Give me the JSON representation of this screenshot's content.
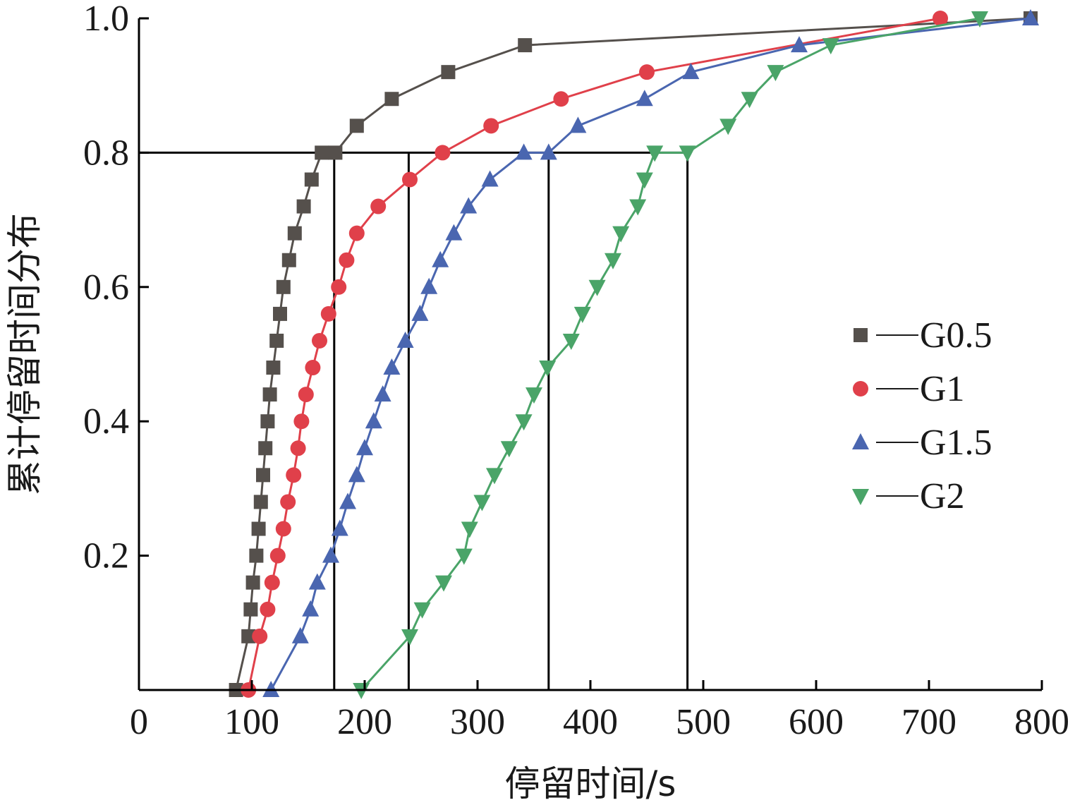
{
  "chart_data": {
    "type": "line",
    "xlabel": "停留时间/s",
    "ylabel": "累计停留时间分布",
    "xlim": [
      0,
      800
    ],
    "ylim": [
      0,
      1.0
    ],
    "xticks": [
      0,
      100,
      200,
      300,
      400,
      500,
      600,
      700,
      800
    ],
    "xtick_labels": [
      "0",
      "100",
      "200",
      "300",
      "400",
      "500",
      "600",
      "700",
      "800"
    ],
    "yticks": [
      0.2,
      0.4,
      0.6,
      0.8,
      1.0
    ],
    "ytick_labels": [
      "0.2",
      "0.4",
      "0.6",
      "0.8",
      "1.0"
    ],
    "legend_position": "right",
    "grid": false,
    "reference_lines": {
      "y": 0.8,
      "x": [
        173,
        239,
        363,
        486
      ]
    },
    "series": [
      {
        "name": "G0.5",
        "marker": "square",
        "color": "#55504c",
        "x": [
          86,
          97,
          99,
          101,
          104,
          106,
          108,
          110,
          112,
          114,
          116,
          119,
          122,
          125,
          128,
          133,
          138,
          146,
          153,
          162,
          174,
          193,
          224,
          274,
          342,
          790
        ],
        "y": [
          0,
          0.08,
          0.12,
          0.16,
          0.2,
          0.24,
          0.28,
          0.32,
          0.36,
          0.4,
          0.44,
          0.48,
          0.52,
          0.56,
          0.6,
          0.64,
          0.68,
          0.72,
          0.76,
          0.8,
          0.8,
          0.84,
          0.88,
          0.92,
          0.96,
          1.0
        ]
      },
      {
        "name": "G1",
        "marker": "circle",
        "color": "#e0404a",
        "x": [
          97,
          107,
          114,
          118,
          123,
          128,
          132,
          137,
          141,
          144,
          148,
          154,
          160,
          168,
          177,
          184,
          193,
          212,
          240,
          269,
          312,
          374,
          450,
          710
        ],
        "y": [
          0,
          0.08,
          0.12,
          0.16,
          0.2,
          0.24,
          0.28,
          0.32,
          0.36,
          0.4,
          0.44,
          0.48,
          0.52,
          0.56,
          0.6,
          0.64,
          0.68,
          0.72,
          0.76,
          0.8,
          0.84,
          0.88,
          0.92,
          1.0
        ]
      },
      {
        "name": "G1.5",
        "marker": "triangle-up",
        "color": "#4a66b0",
        "x": [
          117,
          143,
          152,
          158,
          170,
          178,
          185,
          193,
          200,
          208,
          216,
          224,
          236,
          249,
          257,
          267,
          279,
          292,
          311,
          341,
          363,
          389,
          448,
          489,
          585,
          790
        ],
        "y": [
          0,
          0.08,
          0.12,
          0.16,
          0.2,
          0.24,
          0.28,
          0.32,
          0.36,
          0.4,
          0.44,
          0.48,
          0.52,
          0.56,
          0.6,
          0.64,
          0.68,
          0.72,
          0.76,
          0.8,
          0.8,
          0.84,
          0.88,
          0.92,
          0.96,
          1.0
        ]
      },
      {
        "name": "G2",
        "marker": "triangle-down",
        "color": "#4aa468",
        "x": [
          197,
          240,
          251,
          270,
          288,
          293,
          304,
          315,
          328,
          341,
          350,
          362,
          383,
          393,
          406,
          420,
          427,
          442,
          448,
          457,
          486,
          522,
          541,
          564,
          613,
          745
        ],
        "y": [
          0,
          0.08,
          0.12,
          0.16,
          0.2,
          0.24,
          0.28,
          0.32,
          0.36,
          0.4,
          0.44,
          0.48,
          0.52,
          0.56,
          0.6,
          0.64,
          0.68,
          0.72,
          0.76,
          0.8,
          0.8,
          0.84,
          0.88,
          0.92,
          0.96,
          1.0
        ]
      }
    ]
  }
}
